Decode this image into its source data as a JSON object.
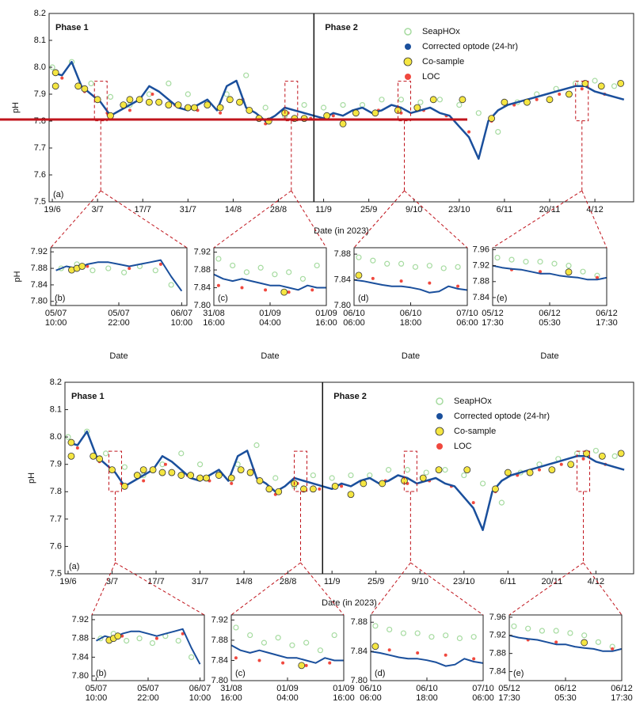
{
  "chart_data": [
    {
      "type": "line",
      "panel": "(a)",
      "xlabel": "Date (in 2023)",
      "ylabel": "pH",
      "annotations": [
        "Phase 1",
        "Phase 2"
      ],
      "divider": 81,
      "xlim": [
        -1,
        180
      ],
      "xticks": [
        {
          "value": 0,
          "label": "19/6"
        },
        {
          "value": 14,
          "label": "3/7"
        },
        {
          "value": 28,
          "label": "17/7"
        },
        {
          "value": 42,
          "label": "31/7"
        },
        {
          "value": 56,
          "label": "14/8"
        },
        {
          "value": 70,
          "label": "28/8"
        },
        {
          "value": 84,
          "label": "11/9"
        },
        {
          "value": 98,
          "label": "25/9"
        },
        {
          "value": 112,
          "label": "9/10"
        },
        {
          "value": 126,
          "label": "23/10"
        },
        {
          "value": 140,
          "label": "6/11"
        },
        {
          "value": 154,
          "label": "20/11"
        },
        {
          "value": 168,
          "label": "4/12"
        }
      ],
      "ylim": [
        7.5,
        8.2
      ],
      "yticks": [
        7.5,
        7.6,
        7.7,
        7.8,
        7.9,
        {
          "value": 8,
          "label": "8.0"
        },
        8.1,
        8.2
      ],
      "series": [
        {
          "name": "SeapHOx",
          "color": "#a6dba0",
          "marker": "hollow",
          "x": [
            0,
            6,
            12,
            18,
            24,
            30,
            36,
            42,
            48,
            54,
            60,
            66,
            72,
            78,
            84,
            90,
            96,
            102,
            108,
            114,
            120,
            126,
            132,
            138,
            144,
            150,
            156,
            162,
            168,
            174
          ],
          "values": [
            8.0,
            8.02,
            7.94,
            7.89,
            7.86,
            7.9,
            7.94,
            7.9,
            7.87,
            7.9,
            7.97,
            7.85,
            7.82,
            7.86,
            7.85,
            7.86,
            7.86,
            7.88,
            7.88,
            7.87,
            7.88,
            7.86,
            7.83,
            7.76,
            7.87,
            7.9,
            7.92,
            7.94,
            7.95,
            7.93
          ]
        },
        {
          "name": "Corrected optode (24-hr)",
          "color": "#1a4f9c",
          "marker": "line",
          "x": [
            0,
            3,
            6,
            9,
            12,
            15,
            18,
            21,
            24,
            27,
            30,
            33,
            36,
            39,
            42,
            45,
            48,
            51,
            54,
            57,
            60,
            63,
            66,
            69,
            72,
            75,
            78,
            81,
            84,
            87,
            90,
            93,
            96,
            99,
            102,
            105,
            108,
            111,
            114,
            117,
            120,
            123,
            126,
            129,
            132,
            135,
            138,
            141,
            144,
            147,
            150,
            153,
            156,
            159,
            162,
            165,
            168,
            171,
            174,
            177
          ],
          "values": [
            7.98,
            7.97,
            8.02,
            7.93,
            7.9,
            7.87,
            7.82,
            7.84,
            7.86,
            7.88,
            7.93,
            7.91,
            7.88,
            7.85,
            7.84,
            7.86,
            7.88,
            7.84,
            7.93,
            7.95,
            7.85,
            7.83,
            7.8,
            7.82,
            7.85,
            7.84,
            7.83,
            7.82,
            7.81,
            7.83,
            7.82,
            7.84,
            7.85,
            7.83,
            7.84,
            7.86,
            7.85,
            7.83,
            7.84,
            7.85,
            7.83,
            7.82,
            7.78,
            7.74,
            7.66,
            7.8,
            7.84,
            7.86,
            7.87,
            7.88,
            7.89,
            7.9,
            7.91,
            7.92,
            7.93,
            7.93,
            7.91,
            7.9,
            7.89,
            7.88
          ]
        },
        {
          "name": "Co-sample",
          "color": "#f5e642",
          "marker": "filled",
          "x": [
            1,
            1,
            8,
            10,
            14,
            18,
            22,
            24,
            27,
            30,
            33,
            36,
            39,
            42,
            44,
            48,
            52,
            55,
            58,
            61,
            64,
            67,
            72,
            75,
            78,
            85,
            90,
            94,
            100,
            107,
            113,
            118,
            127,
            136,
            140,
            147,
            154,
            160,
            165,
            170,
            176
          ],
          "values": [
            7.98,
            7.93,
            7.93,
            7.92,
            7.88,
            7.82,
            7.86,
            7.88,
            7.88,
            7.87,
            7.87,
            7.86,
            7.86,
            7.85,
            7.85,
            7.86,
            7.85,
            7.88,
            7.87,
            7.84,
            7.81,
            7.8,
            7.83,
            7.81,
            7.81,
            7.82,
            7.79,
            7.83,
            7.83,
            7.84,
            7.85,
            7.88,
            7.88,
            7.81,
            7.87,
            7.87,
            7.88,
            7.9,
            7.94,
            7.93,
            7.94
          ]
        },
        {
          "name": "LOC",
          "color": "#f0483e",
          "marker": "dot",
          "x": [
            3,
            10,
            17,
            24,
            31,
            38,
            45,
            52,
            59,
            66,
            73,
            80,
            87,
            94,
            101,
            108,
            115,
            122,
            129,
            136,
            143,
            150,
            157,
            164,
            171
          ],
          "values": [
            7.96,
            7.91,
            7.83,
            7.84,
            7.9,
            7.86,
            7.84,
            7.83,
            7.88,
            7.79,
            7.83,
            7.81,
            7.82,
            7.83,
            7.84,
            7.83,
            7.84,
            7.82,
            7.76,
            7.8,
            7.86,
            7.88,
            7.9,
            7.92,
            7.9
          ]
        }
      ]
    },
    {
      "type": "line",
      "panel": "(b)",
      "xlabel": "Date",
      "ylabel": "pH",
      "xlim": [
        -1,
        25
      ],
      "xticks": [
        {
          "value": 0,
          "label": "05/07\n10:00"
        },
        {
          "value": 12,
          "label": "05/07\n22:00"
        },
        {
          "value": 24,
          "label": "06/07\n10:00"
        }
      ],
      "ylim": [
        7.79,
        7.93
      ],
      "yticks": [
        {
          "value": 7.8,
          "label": "7.80"
        },
        7.84,
        7.88,
        7.92
      ],
      "series": [
        {
          "color": "#a6dba0",
          "marker": "hollow",
          "x": [
            1,
            4,
            7,
            10,
            13,
            16,
            19,
            22
          ],
          "values": [
            7.88,
            7.89,
            7.875,
            7.88,
            7.87,
            7.885,
            7.875,
            7.84
          ]
        },
        {
          "color": "#1a4f9c",
          "marker": "line",
          "x": [
            0,
            2,
            4,
            6,
            8,
            10,
            12,
            14,
            16,
            18,
            20,
            22,
            24
          ],
          "values": [
            7.875,
            7.885,
            7.88,
            7.89,
            7.895,
            7.895,
            7.89,
            7.885,
            7.89,
            7.895,
            7.9,
            7.86,
            7.825
          ]
        },
        {
          "color": "#f5e642",
          "marker": "filled",
          "x": [
            3,
            4,
            5
          ],
          "values": [
            7.876,
            7.88,
            7.885
          ]
        },
        {
          "color": "#f0483e",
          "marker": "dot",
          "x": [
            6,
            14,
            20
          ],
          "values": [
            7.885,
            7.88,
            7.89
          ]
        }
      ]
    },
    {
      "type": "line",
      "panel": "(c)",
      "xlabel": "Date",
      "xlim": [
        0,
        24
      ],
      "xticks": [
        {
          "value": 0,
          "label": "31/08\n16:00"
        },
        {
          "value": 12,
          "label": "01/09\n04:00"
        },
        {
          "value": 24,
          "label": "01/09\n16:00"
        }
      ],
      "ylim": [
        7.8,
        7.93
      ],
      "yticks": [
        {
          "value": 7.8,
          "label": "7.80"
        },
        7.84,
        7.88,
        7.92
      ],
      "series": [
        {
          "color": "#a6dba0",
          "marker": "hollow",
          "x": [
            1,
            4,
            7,
            10,
            13,
            16,
            19,
            22
          ],
          "values": [
            7.905,
            7.89,
            7.875,
            7.885,
            7.87,
            7.875,
            7.86,
            7.89
          ]
        },
        {
          "color": "#1a4f9c",
          "marker": "line",
          "x": [
            0,
            2,
            4,
            6,
            8,
            10,
            12,
            14,
            16,
            18,
            20,
            22,
            24
          ],
          "values": [
            7.87,
            7.86,
            7.855,
            7.86,
            7.855,
            7.85,
            7.845,
            7.845,
            7.84,
            7.835,
            7.845,
            7.84,
            7.84
          ]
        },
        {
          "color": "#f5e642",
          "marker": "filled",
          "x": [
            15
          ],
          "values": [
            7.83
          ]
        },
        {
          "color": "#f0483e",
          "marker": "dot",
          "x": [
            1,
            6,
            11,
            16,
            21
          ],
          "values": [
            7.845,
            7.84,
            7.835,
            7.83,
            7.835
          ]
        }
      ]
    },
    {
      "type": "line",
      "panel": "(d)",
      "xlabel": "Date",
      "xlim": [
        0,
        24
      ],
      "xticks": [
        {
          "value": 0,
          "label": "06/10\n06:00"
        },
        {
          "value": 12,
          "label": "06/10\n18:00"
        },
        {
          "value": 24,
          "label": "07/10\n06:00"
        }
      ],
      "ylim": [
        7.8,
        7.89
      ],
      "yticks": [
        {
          "value": 7.8,
          "label": "7.80"
        },
        7.84,
        7.88
      ],
      "series": [
        {
          "color": "#a6dba0",
          "marker": "hollow",
          "x": [
            1,
            4,
            7,
            10,
            13,
            16,
            19,
            22
          ],
          "values": [
            7.875,
            7.87,
            7.865,
            7.865,
            7.86,
            7.862,
            7.858,
            7.86
          ]
        },
        {
          "color": "#1a4f9c",
          "marker": "line",
          "x": [
            0,
            2,
            4,
            6,
            8,
            10,
            12,
            14,
            16,
            18,
            20,
            22,
            24
          ],
          "values": [
            7.84,
            7.838,
            7.835,
            7.832,
            7.83,
            7.83,
            7.828,
            7.825,
            7.82,
            7.822,
            7.83,
            7.826,
            7.824
          ]
        },
        {
          "color": "#f5e642",
          "marker": "filled",
          "x": [
            1
          ],
          "values": [
            7.847
          ]
        },
        {
          "color": "#f0483e",
          "marker": "dot",
          "x": [
            4,
            10,
            16,
            22
          ],
          "values": [
            7.842,
            7.838,
            7.835,
            7.83
          ]
        }
      ]
    },
    {
      "type": "line",
      "panel": "(e)",
      "xlabel": "Date",
      "xlim": [
        0,
        24
      ],
      "xticks": [
        {
          "value": 0,
          "label": "05/12\n17:30"
        },
        {
          "value": 12,
          "label": "06/12\n05:30"
        },
        {
          "value": 24,
          "label": "06/12\n17:30"
        }
      ],
      "ylim": [
        7.82,
        7.965
      ],
      "yticks": [
        7.84,
        7.88,
        7.92,
        7.96
      ],
      "series": [
        {
          "color": "#a6dba0",
          "marker": "hollow",
          "x": [
            1,
            4,
            7,
            10,
            13,
            16,
            19,
            22
          ],
          "values": [
            7.94,
            7.935,
            7.93,
            7.93,
            7.925,
            7.92,
            7.905,
            7.895
          ]
        },
        {
          "color": "#1a4f9c",
          "marker": "line",
          "x": [
            0,
            2,
            4,
            6,
            8,
            10,
            12,
            14,
            16,
            18,
            20,
            22,
            24
          ],
          "values": [
            7.92,
            7.915,
            7.912,
            7.91,
            7.905,
            7.9,
            7.9,
            7.895,
            7.892,
            7.89,
            7.885,
            7.885,
            7.89
          ]
        },
        {
          "color": "#f5e642",
          "marker": "filled",
          "x": [
            16
          ],
          "values": [
            7.904
          ]
        },
        {
          "color": "#f0483e",
          "marker": "dot",
          "x": [
            4,
            10,
            16,
            22
          ],
          "values": [
            7.91,
            7.905,
            7.9,
            7.89
          ]
        }
      ]
    }
  ]
}
